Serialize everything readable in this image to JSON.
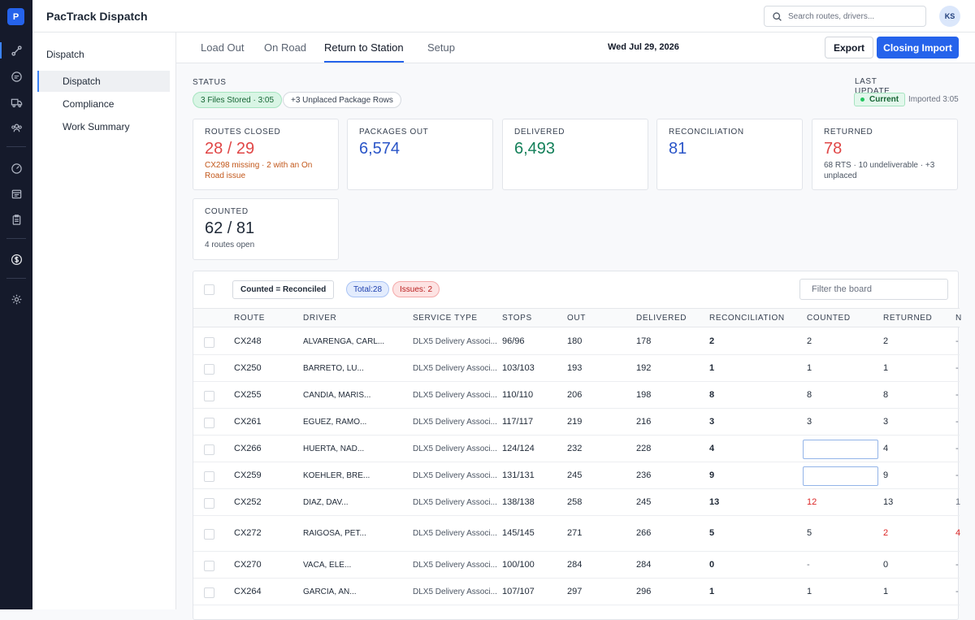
{
  "app": {
    "logo_letter": "P",
    "title": "PacTrack Dispatch",
    "user_initials": "KS"
  },
  "search": {
    "placeholder": "Search routes, drivers..."
  },
  "rail": {
    "icons": [
      "route-icon",
      "chat-icon",
      "truck-icon",
      "users-icon",
      "gauge-icon",
      "calendar-icon",
      "clipboard-icon",
      "dollar-icon",
      "gear-icon"
    ]
  },
  "sidebar": {
    "section": "Dispatch",
    "items": [
      {
        "label": "Dispatch",
        "active": true
      },
      {
        "label": "Compliance",
        "active": false
      },
      {
        "label": "Work Summary",
        "active": false
      }
    ]
  },
  "tabs": [
    {
      "label": "Load Out",
      "active": false
    },
    {
      "label": "On Road",
      "active": false
    },
    {
      "label": "Return to Station",
      "active": true
    },
    {
      "label": "Setup",
      "active": false
    }
  ],
  "date": "Wed Jul 29, 2026",
  "buttons": {
    "export": "Export",
    "closing_import": "Closing Import"
  },
  "status": {
    "label": "STATUS",
    "files_pill": "3 Files Stored · 3:05",
    "unplaced_pill": "+3 Unplaced Package Rows",
    "last_update_label": "LAST UPDATE",
    "current_badge": "Current",
    "imported": "Imported 3:05"
  },
  "stats": [
    {
      "title": "ROUTES CLOSED",
      "value": "28 / 29",
      "sub": "CX298 missing · 2 with an On Road issue",
      "value_color": "#e04646",
      "sub_color": "#c2571a"
    },
    {
      "title": "PACKAGES OUT",
      "value": "6,574",
      "sub": "",
      "value_color": "#2a55c8",
      "sub_color": "#4b5563"
    },
    {
      "title": "DELIVERED",
      "value": "6,493",
      "sub": "",
      "value_color": "#14805a",
      "sub_color": "#4b5563"
    },
    {
      "title": "RECONCILIATION",
      "value": "81",
      "sub": "",
      "value_color": "#2a55c8",
      "sub_color": "#4b5563"
    },
    {
      "title": "RETURNED",
      "value": "78",
      "sub": "68 RTS · 10 undeliverable · +3 unplaced",
      "value_color": "#e04646",
      "sub_color": "#4b5563"
    },
    {
      "title": "COUNTED",
      "value": "62 / 81",
      "sub": "4 routes open",
      "value_color": "#1f2937",
      "sub_color": "#4b5563"
    }
  ],
  "board": {
    "toggle": "Counted = Reconciled",
    "total_tag": "Total:28",
    "issues_tag": "Issues: 2",
    "filter_placeholder": "Filter the board",
    "columns": [
      "ROUTE",
      "DRIVER",
      "SERVICE TYPE",
      "STOPS",
      "OUT",
      "DELIVERED",
      "RECONCILIATION",
      "COUNTED",
      "RETURNED",
      "N"
    ],
    "rows": [
      {
        "route": "CX248",
        "driver": "ALVARENGA, CARL...",
        "service": "DLX5 Delivery Associ...",
        "stops": "96/96",
        "out": "180",
        "delivered": "178",
        "reconciliation": "2",
        "counted": "2",
        "counted_input": false,
        "counted_red": false,
        "returned": "2",
        "returned_red": false,
        "last": "-",
        "last_red": false
      },
      {
        "route": "CX250",
        "driver": "BARRETO, LU...",
        "service": "DLX5 Delivery Associ...",
        "stops": "103/103",
        "out": "193",
        "delivered": "192",
        "reconciliation": "1",
        "counted": "1",
        "counted_input": false,
        "counted_red": false,
        "returned": "1",
        "returned_red": false,
        "last": "-",
        "last_red": false
      },
      {
        "route": "CX255",
        "driver": "CANDIA, MARIS...",
        "service": "DLX5 Delivery Associ...",
        "stops": "110/110",
        "out": "206",
        "delivered": "198",
        "reconciliation": "8",
        "counted": "8",
        "counted_input": false,
        "counted_red": false,
        "returned": "8",
        "returned_red": false,
        "last": "-",
        "last_red": false
      },
      {
        "route": "CX261",
        "driver": "EGUEZ, RAMO...",
        "service": "DLX5 Delivery Associ...",
        "stops": "117/117",
        "out": "219",
        "delivered": "216",
        "reconciliation": "3",
        "counted": "3",
        "counted_input": false,
        "counted_red": false,
        "returned": "3",
        "returned_red": false,
        "last": "-",
        "last_red": false
      },
      {
        "route": "CX266",
        "driver": "HUERTA, NAD...",
        "service": "DLX5 Delivery Associ...",
        "stops": "124/124",
        "out": "232",
        "delivered": "228",
        "reconciliation": "4",
        "counted": "",
        "counted_input": true,
        "counted_red": false,
        "returned": "4",
        "returned_red": false,
        "last": "-",
        "last_red": false
      },
      {
        "route": "CX259",
        "driver": "KOEHLER, BRE...",
        "service": "DLX5 Delivery Associ...",
        "stops": "131/131",
        "out": "245",
        "delivered": "236",
        "reconciliation": "9",
        "counted": "",
        "counted_input": true,
        "counted_red": false,
        "returned": "9",
        "returned_red": false,
        "last": "-",
        "last_red": false
      },
      {
        "route": "CX252",
        "driver": "DIAZ, DAV...",
        "service": "DLX5 Delivery Associ...",
        "stops": "138/138",
        "out": "258",
        "delivered": "245",
        "reconciliation": "13",
        "counted": "12",
        "counted_input": false,
        "counted_red": true,
        "returned": "13",
        "returned_red": false,
        "last": "1",
        "last_red": false
      },
      {
        "route": "CX272",
        "driver": "RAIGOSA, PET...",
        "service": "DLX5 Delivery Associ...",
        "stops": "145/145",
        "out": "271",
        "delivered": "266",
        "reconciliation": "5",
        "counted": "5",
        "counted_input": false,
        "counted_red": false,
        "returned": "2",
        "returned_red": true,
        "last": "4",
        "last_red": true
      },
      {
        "route": "CX270",
        "driver": "VACA, ELE...",
        "service": "DLX5 Delivery Associ...",
        "stops": "100/100",
        "out": "284",
        "delivered": "284",
        "reconciliation": "0",
        "counted": "-",
        "counted_input": false,
        "counted_red": false,
        "returned": "0",
        "returned_red": false,
        "last": "-",
        "last_red": false
      },
      {
        "route": "CX264",
        "driver": "GARCIA, AN...",
        "service": "DLX5 Delivery Associ...",
        "stops": "107/107",
        "out": "297",
        "delivered": "296",
        "reconciliation": "1",
        "counted": "1",
        "counted_input": false,
        "counted_red": false,
        "returned": "1",
        "returned_red": false,
        "last": "-",
        "last_red": false
      }
    ]
  }
}
